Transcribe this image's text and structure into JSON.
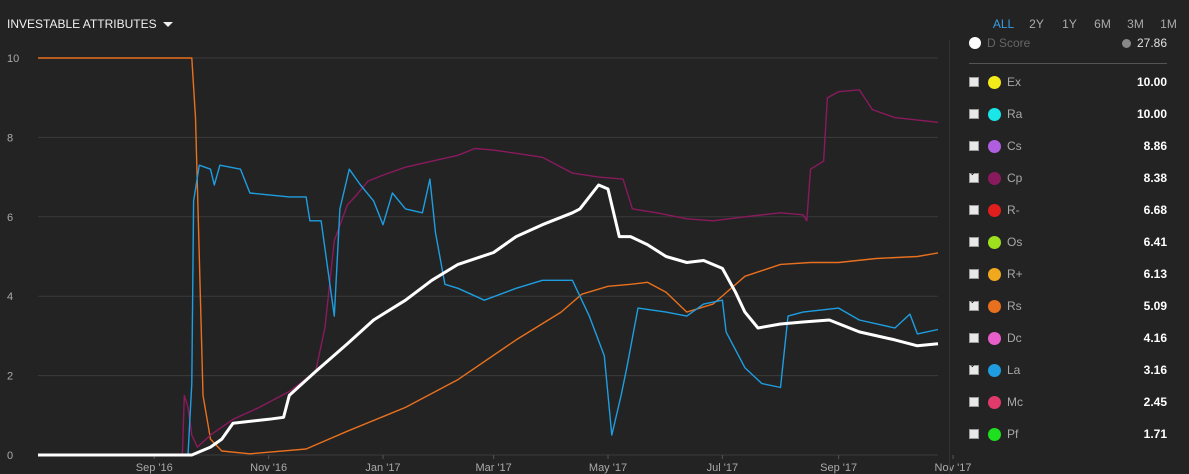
{
  "header": {
    "title": "INVESTABLE ATTRIBUTES"
  },
  "ranges": [
    {
      "label": "ALL",
      "active": true
    },
    {
      "label": "2Y",
      "active": false
    },
    {
      "label": "1Y",
      "active": false
    },
    {
      "label": "6M",
      "active": false
    },
    {
      "label": "3M",
      "active": false
    },
    {
      "label": "1M",
      "active": false
    }
  ],
  "legend": {
    "dscore": {
      "label": "D Score",
      "value": "27.86"
    },
    "items": [
      {
        "name": "Ex",
        "value": "10.00",
        "color": "#f2ea1a",
        "checked": false
      },
      {
        "name": "Ra",
        "value": "10.00",
        "color": "#19e6e6",
        "checked": false
      },
      {
        "name": "Cs",
        "value": "8.86",
        "color": "#b05ee0",
        "checked": false
      },
      {
        "name": "Cp",
        "value": "8.38",
        "color": "#8a1a5e",
        "checked": true
      },
      {
        "name": "R-",
        "value": "6.68",
        "color": "#e01e1e",
        "checked": false
      },
      {
        "name": "Os",
        "value": "6.41",
        "color": "#9ee01e",
        "checked": false
      },
      {
        "name": "R+",
        "value": "6.13",
        "color": "#f0a81e",
        "checked": false
      },
      {
        "name": "Rs",
        "value": "5.09",
        "color": "#e8701e",
        "checked": true
      },
      {
        "name": "Dc",
        "value": "4.16",
        "color": "#e85ec8",
        "checked": false
      },
      {
        "name": "La",
        "value": "3.16",
        "color": "#1e9ee0",
        "checked": true
      },
      {
        "name": "Mc",
        "value": "2.45",
        "color": "#e03a6a",
        "checked": false
      },
      {
        "name": "Pf",
        "value": "1.71",
        "color": "#1ee01e",
        "checked": false
      }
    ]
  },
  "chart_data": {
    "type": "line",
    "ylim": [
      0,
      10
    ],
    "yticks": [
      "0",
      "2",
      "4",
      "6",
      "8",
      "10"
    ],
    "x_range": [
      "2016-07-20",
      "2017-11-12"
    ],
    "xticks": [
      {
        "label": "Sep '16",
        "date": "2016-09-20"
      },
      {
        "label": "Nov '16",
        "date": "2016-11-20"
      },
      {
        "label": "Jan '17",
        "date": "2017-01-20"
      },
      {
        "label": "Mar '17",
        "date": "2017-03-20"
      },
      {
        "label": "May '17",
        "date": "2017-05-20"
      },
      {
        "label": "Jul '17",
        "date": "2017-07-20"
      },
      {
        "label": "Sep '17",
        "date": "2017-09-20"
      },
      {
        "label": "Nov '17",
        "date": "2017-11-20"
      }
    ],
    "grid": true,
    "series": [
      {
        "name": "Rs",
        "color": "#e8701e",
        "points": [
          [
            "2016-07-20",
            10
          ],
          [
            "2016-10-10",
            10
          ],
          [
            "2016-10-12",
            8.5
          ],
          [
            "2016-10-14",
            5
          ],
          [
            "2016-10-16",
            1.5
          ],
          [
            "2016-10-20",
            0.4
          ],
          [
            "2016-10-26",
            0.1
          ],
          [
            "2016-11-10",
            0.03
          ],
          [
            "2016-12-10",
            0.15
          ],
          [
            "2017-01-01",
            0.6
          ],
          [
            "2017-02-01",
            1.2
          ],
          [
            "2017-03-01",
            1.9
          ],
          [
            "2017-04-01",
            2.9
          ],
          [
            "2017-04-25",
            3.6
          ],
          [
            "2017-05-06",
            4.05
          ],
          [
            "2017-05-20",
            4.25
          ],
          [
            "2017-06-01",
            4.3
          ],
          [
            "2017-06-10",
            4.35
          ],
          [
            "2017-06-20",
            4.1
          ],
          [
            "2017-07-01",
            3.6
          ],
          [
            "2017-07-15",
            3.8
          ],
          [
            "2017-08-01",
            4.5
          ],
          [
            "2017-08-20",
            4.8
          ],
          [
            "2017-09-05",
            4.85
          ],
          [
            "2017-09-20",
            4.85
          ],
          [
            "2017-10-10",
            4.95
          ],
          [
            "2017-11-01",
            5.0
          ],
          [
            "2017-11-12",
            5.09
          ]
        ]
      },
      {
        "name": "Cp",
        "color": "#8a1a5e",
        "points": [
          [
            "2016-07-20",
            0
          ],
          [
            "2016-10-05",
            0
          ],
          [
            "2016-10-06",
            1.5
          ],
          [
            "2016-10-08",
            1.2
          ],
          [
            "2016-10-10",
            0.5
          ],
          [
            "2016-10-13",
            0.2
          ],
          [
            "2016-10-20",
            0.5
          ],
          [
            "2016-11-01",
            0.9
          ],
          [
            "2016-11-15",
            1.2
          ],
          [
            "2016-12-01",
            1.6
          ],
          [
            "2016-12-15",
            2.1
          ],
          [
            "2016-12-20",
            3.2
          ],
          [
            "2016-12-25",
            5.4
          ],
          [
            "2017-01-01",
            6.3
          ],
          [
            "2017-01-05",
            6.5
          ],
          [
            "2017-01-12",
            6.9
          ],
          [
            "2017-01-20",
            7.05
          ],
          [
            "2017-02-01",
            7.25
          ],
          [
            "2017-02-15",
            7.4
          ],
          [
            "2017-03-01",
            7.55
          ],
          [
            "2017-03-10",
            7.72
          ],
          [
            "2017-03-20",
            7.68
          ],
          [
            "2017-04-01",
            7.6
          ],
          [
            "2017-04-15",
            7.5
          ],
          [
            "2017-05-01",
            7.1
          ],
          [
            "2017-05-15",
            7.0
          ],
          [
            "2017-05-28",
            6.95
          ],
          [
            "2017-06-02",
            6.2
          ],
          [
            "2017-06-15",
            6.1
          ],
          [
            "2017-07-01",
            5.95
          ],
          [
            "2017-07-15",
            5.9
          ],
          [
            "2017-08-01",
            6.0
          ],
          [
            "2017-08-20",
            6.1
          ],
          [
            "2017-09-01",
            6.05
          ],
          [
            "2017-09-03",
            5.9
          ],
          [
            "2017-09-05",
            7.2
          ],
          [
            "2017-09-12",
            7.4
          ],
          [
            "2017-09-14",
            9.0
          ],
          [
            "2017-09-20",
            9.15
          ],
          [
            "2017-10-01",
            9.2
          ],
          [
            "2017-10-08",
            8.7
          ],
          [
            "2017-10-20",
            8.5
          ],
          [
            "2017-11-12",
            8.38
          ]
        ]
      },
      {
        "name": "La",
        "color": "#1e9ee0",
        "points": [
          [
            "2016-07-20",
            0
          ],
          [
            "2016-10-08",
            0
          ],
          [
            "2016-10-10",
            1.8
          ],
          [
            "2016-10-11",
            6.4
          ],
          [
            "2016-10-14",
            7.3
          ],
          [
            "2016-10-20",
            7.2
          ],
          [
            "2016-10-22",
            6.8
          ],
          [
            "2016-10-25",
            7.3
          ],
          [
            "2016-11-05",
            7.2
          ],
          [
            "2016-11-10",
            6.6
          ],
          [
            "2016-12-01",
            6.5
          ],
          [
            "2016-12-10",
            6.5
          ],
          [
            "2016-12-12",
            5.9
          ],
          [
            "2016-12-18",
            5.9
          ],
          [
            "2016-12-25",
            3.5
          ],
          [
            "2016-12-28",
            6.2
          ],
          [
            "2017-01-02",
            7.2
          ],
          [
            "2017-01-08",
            6.8
          ],
          [
            "2017-01-15",
            6.4
          ],
          [
            "2017-01-20",
            5.8
          ],
          [
            "2017-01-25",
            6.6
          ],
          [
            "2017-02-01",
            6.2
          ],
          [
            "2017-02-10",
            6.1
          ],
          [
            "2017-02-14",
            6.95
          ],
          [
            "2017-02-17",
            5.6
          ],
          [
            "2017-02-22",
            4.3
          ],
          [
            "2017-03-01",
            4.2
          ],
          [
            "2017-03-15",
            3.9
          ],
          [
            "2017-04-01",
            4.2
          ],
          [
            "2017-04-15",
            4.4
          ],
          [
            "2017-05-01",
            4.4
          ],
          [
            "2017-05-10",
            3.5
          ],
          [
            "2017-05-18",
            2.5
          ],
          [
            "2017-05-22",
            0.5
          ],
          [
            "2017-05-27",
            1.5
          ],
          [
            "2017-05-30",
            2.2
          ],
          [
            "2017-06-05",
            3.7
          ],
          [
            "2017-06-20",
            3.6
          ],
          [
            "2017-07-01",
            3.5
          ],
          [
            "2017-07-10",
            3.8
          ],
          [
            "2017-07-20",
            3.9
          ],
          [
            "2017-07-22",
            3.1
          ],
          [
            "2017-08-01",
            2.2
          ],
          [
            "2017-08-10",
            1.8
          ],
          [
            "2017-08-20",
            1.7
          ],
          [
            "2017-08-24",
            3.5
          ],
          [
            "2017-09-01",
            3.6
          ],
          [
            "2017-09-20",
            3.7
          ],
          [
            "2017-10-01",
            3.4
          ],
          [
            "2017-10-20",
            3.2
          ],
          [
            "2017-10-28",
            3.55
          ],
          [
            "2017-11-01",
            3.05
          ],
          [
            "2017-11-12",
            3.16
          ]
        ]
      },
      {
        "name": "D Score",
        "color": "#ffffff",
        "points": [
          [
            "2016-07-20",
            0
          ],
          [
            "2016-10-10",
            0
          ],
          [
            "2016-10-20",
            0.2
          ],
          [
            "2016-10-26",
            0.4
          ],
          [
            "2016-11-01",
            0.8
          ],
          [
            "2016-11-20",
            0.9
          ],
          [
            "2016-11-28",
            0.95
          ],
          [
            "2016-12-01",
            1.5
          ],
          [
            "2016-12-15",
            2.1
          ],
          [
            "2017-01-01",
            2.8
          ],
          [
            "2017-01-15",
            3.4
          ],
          [
            "2017-02-01",
            3.9
          ],
          [
            "2017-02-15",
            4.4
          ],
          [
            "2017-03-01",
            4.8
          ],
          [
            "2017-03-20",
            5.1
          ],
          [
            "2017-04-01",
            5.5
          ],
          [
            "2017-04-15",
            5.8
          ],
          [
            "2017-05-01",
            6.1
          ],
          [
            "2017-05-05",
            6.2
          ],
          [
            "2017-05-15",
            6.8
          ],
          [
            "2017-05-20",
            6.7
          ],
          [
            "2017-05-26",
            5.5
          ],
          [
            "2017-06-01",
            5.5
          ],
          [
            "2017-06-10",
            5.3
          ],
          [
            "2017-06-20",
            5.0
          ],
          [
            "2017-07-01",
            4.85
          ],
          [
            "2017-07-10",
            4.9
          ],
          [
            "2017-07-20",
            4.7
          ],
          [
            "2017-07-27",
            4.1
          ],
          [
            "2017-08-01",
            3.6
          ],
          [
            "2017-08-08",
            3.2
          ],
          [
            "2017-08-20",
            3.3
          ],
          [
            "2017-09-01",
            3.35
          ],
          [
            "2017-09-15",
            3.4
          ],
          [
            "2017-10-01",
            3.1
          ],
          [
            "2017-10-20",
            2.9
          ],
          [
            "2017-11-01",
            2.75
          ],
          [
            "2017-11-12",
            2.8
          ]
        ]
      }
    ]
  }
}
